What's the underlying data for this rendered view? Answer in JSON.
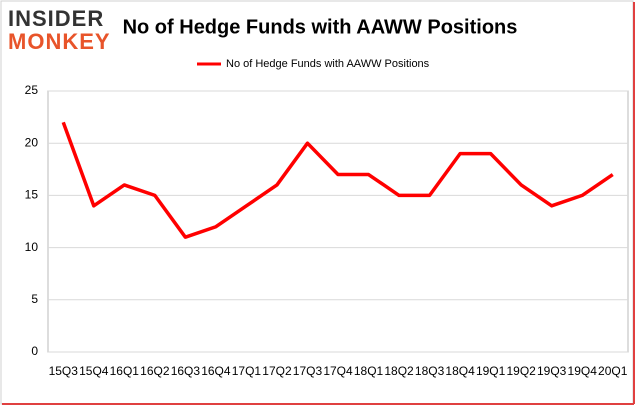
{
  "logo": {
    "top": "INSIDER",
    "bottom": "MONKEY"
  },
  "chart_data": {
    "type": "line",
    "title": "No of Hedge Funds with AAWW Positions",
    "categories": [
      "15Q3",
      "15Q4",
      "16Q1",
      "16Q2",
      "16Q3",
      "16Q4",
      "17Q1",
      "17Q2",
      "17Q3",
      "17Q4",
      "18Q1",
      "18Q2",
      "18Q3",
      "18Q4",
      "19Q1",
      "19Q2",
      "19Q3",
      "19Q4",
      "20Q1"
    ],
    "series": [
      {
        "name": "No of Hedge Funds with AAWW Positions",
        "color": "#ff0000",
        "values": [
          22,
          14,
          16,
          15,
          11,
          12,
          14,
          16,
          20,
          17,
          17,
          15,
          15,
          19,
          19,
          16,
          14,
          15,
          17
        ]
      }
    ],
    "ylim": [
      0,
      25
    ],
    "yticks": [
      0,
      5,
      10,
      15,
      20,
      25
    ],
    "grid": true,
    "legend": "top"
  }
}
